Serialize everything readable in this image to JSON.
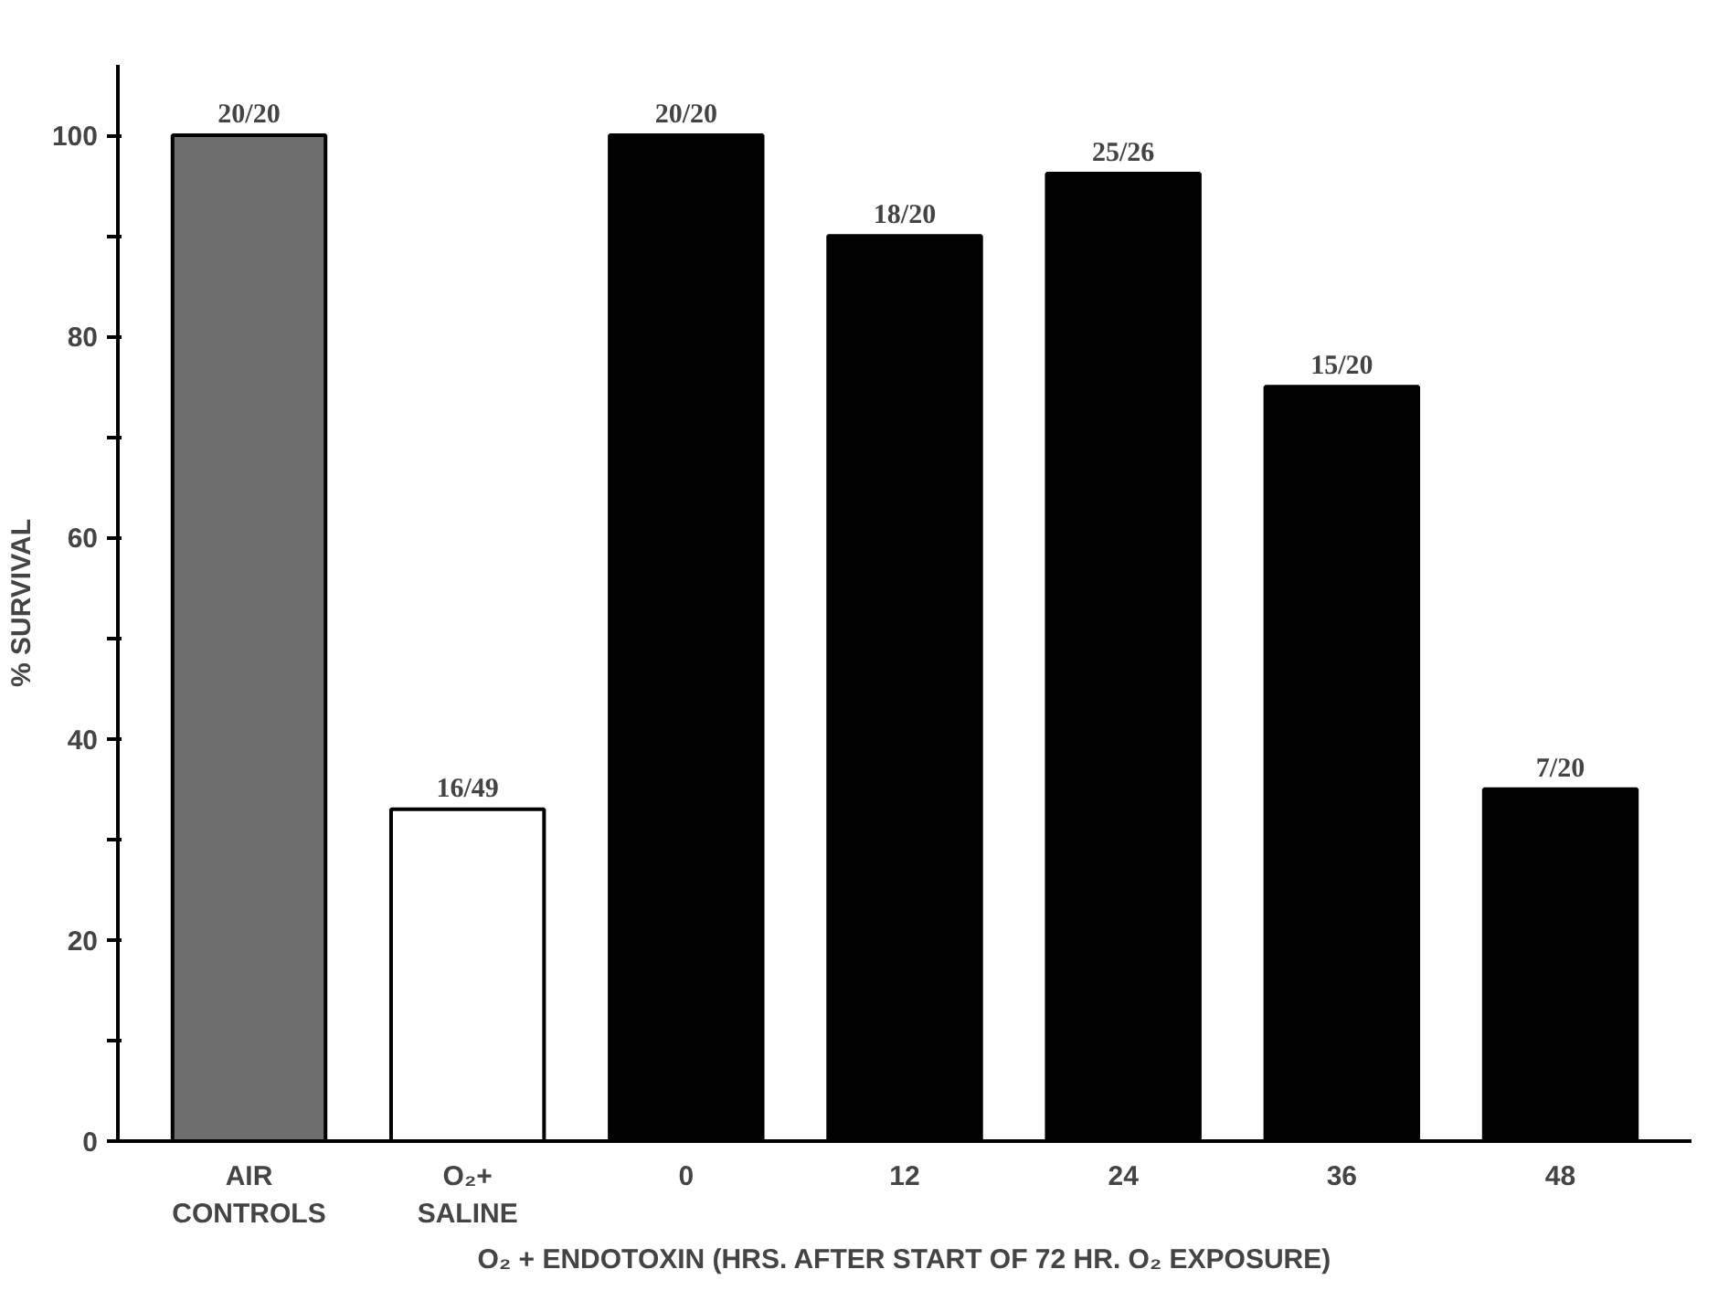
{
  "chart_data": {
    "type": "bar",
    "ylabel": "% SURVIVAL",
    "xlabel": "O₂ + ENDOTOXIN (HRS. AFTER START OF 72 HR. O₂ EXPOSURE)",
    "categories": [
      "AIR\nCONTROLS",
      "O₂+\nSALINE",
      "0",
      "12",
      "24",
      "36",
      "48"
    ],
    "values": [
      100,
      33,
      100,
      90,
      96.2,
      75,
      35
    ],
    "colors": [
      "#6e6e6e",
      "#ffffff",
      "#000000",
      "#000000",
      "#000000",
      "#000000",
      "#000000"
    ],
    "value_labels": [
      "20/20",
      "16/49",
      "20/20",
      "18/20",
      "25/26",
      "15/20",
      "7/20"
    ],
    "ylim": [
      0,
      107
    ],
    "yticks": [
      0,
      {
        "value": 10,
        "label": null
      },
      20,
      {
        "value": 30,
        "label": null
      },
      40,
      {
        "value": 50,
        "label": null
      },
      60,
      {
        "value": 70,
        "label": null
      },
      80,
      {
        "value": 90,
        "label": null
      },
      100
    ],
    "grid": false
  }
}
